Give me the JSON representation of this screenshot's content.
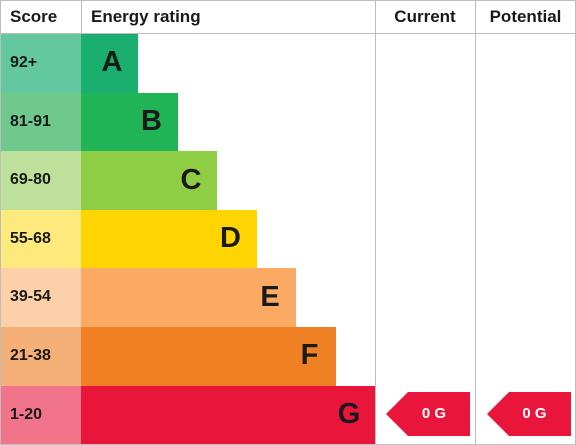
{
  "headers": {
    "score": "Score",
    "energy_rating": "Energy rating",
    "current": "Current",
    "potential": "Potential"
  },
  "chart_data": {
    "type": "table",
    "bands": [
      {
        "score": "92+",
        "letter": "A",
        "bar_color": "#1aae6f",
        "score_bg": "#63c8a0"
      },
      {
        "score": "81-91",
        "letter": "B",
        "bar_color": "#21b457",
        "score_bg": "#6fc98d"
      },
      {
        "score": "69-80",
        "letter": "C",
        "bar_color": "#8fcd45",
        "score_bg": "#bde19a"
      },
      {
        "score": "55-68",
        "letter": "D",
        "bar_color": "#fed500",
        "score_bg": "#fde97c"
      },
      {
        "score": "39-54",
        "letter": "E",
        "bar_color": "#fbaa64",
        "score_bg": "#fdd0aa"
      },
      {
        "score": "21-38",
        "letter": "F",
        "bar_color": "#ef8023",
        "score_bg": "#f5b078"
      },
      {
        "score": "1-20",
        "letter": "G",
        "bar_color": "#e9153b",
        "score_bg": "#f2748b"
      }
    ],
    "current": {
      "value": 0,
      "band": "G",
      "label": "0 G"
    },
    "potential": {
      "value": 0,
      "band": "G",
      "label": "0 G"
    }
  },
  "colors": {
    "arrow": "#e9153b",
    "grid": "#bdbdbd",
    "text": "#1a1a1a"
  }
}
